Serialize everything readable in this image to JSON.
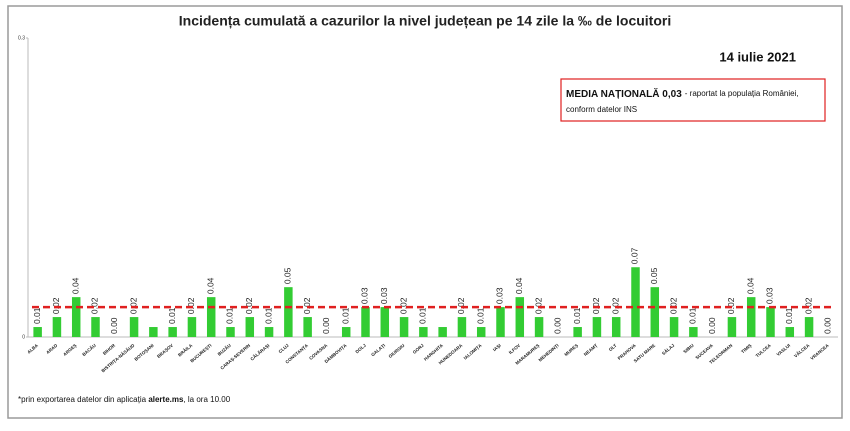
{
  "chart_data": {
    "type": "bar",
    "title": "Incidența cumulată a cazurilor la nivel județean pe 14 zile   la ‰ de locuitori",
    "subtitle": "14 iulie 2021",
    "categories": [
      "ALBA",
      "ARAD",
      "ARGEȘ",
      "BACĂU",
      "BIHOR",
      "BISTRIȚA-NĂSĂUD",
      "BOTOȘANI",
      "BRAȘOV",
      "BRĂILA",
      "BUCUREȘTI",
      "BUZĂU",
      "CARAȘ-SEVERIN",
      "CĂLĂRAȘI",
      "CLUJ",
      "CONSTANȚA",
      "COVASNA",
      "DÂMBOVIȚA",
      "DOLJ",
      "GALAȚI",
      "GIURGIU",
      "GORJ",
      "HARGHITA",
      "HUNEDOARA",
      "IALOMIȚA",
      "IAȘI",
      "ILFOV",
      "MARAMUREȘ",
      "MEHEDINȚI",
      "MUREȘ",
      "NEAMȚ",
      "OLT",
      "PRAHOVA",
      "SATU MARE",
      "SĂLAJ",
      "SIBIU",
      "SUCEAVA",
      "TELEORMAN",
      "TIMIȘ",
      "TULCEA",
      "VASLUI",
      "VÂLCEA",
      "VRANCEA"
    ],
    "values": [
      0.01,
      0.02,
      0.04,
      0.02,
      0,
      0.02,
      0.01,
      0.01,
      0.02,
      0.04,
      0.01,
      0.02,
      0.01,
      0.05,
      0.02,
      0,
      0.01,
      0.03,
      0.03,
      0.02,
      0.01,
      0.01,
      0.02,
      0.01,
      0.03,
      0.04,
      0.02,
      0,
      0.01,
      0.02,
      0.02,
      0.07,
      0.05,
      0.02,
      0.01,
      0,
      0.02,
      0.04,
      0.03,
      0.01,
      0.02,
      0
    ],
    "value_labels": [
      "0.01",
      "0.02",
      "0.04",
      "0.02",
      "0.00",
      "0.02",
      null,
      "0.01",
      "0.02",
      "0.04",
      "0.01",
      "0.02",
      "0.01",
      "0.05",
      "0.02",
      "0.00",
      "0.01",
      "0.03",
      "0.03",
      "0.02",
      "0.01",
      null,
      "0.02",
      "0.01",
      "0.03",
      "0.04",
      "0.02",
      "0.00",
      "0.01",
      "0.02",
      "0.02",
      "0.07",
      "0.05",
      "0.02",
      "0.01",
      "0.00",
      "0.02",
      "0.04",
      "0.03",
      "0.01",
      "0.02",
      "0.00"
    ],
    "color": "#33cc33",
    "ylim": [
      0,
      0.3
    ],
    "yticks": [
      0,
      0.3
    ],
    "reference_line": {
      "value": 0.03,
      "color": "#e02020",
      "label": "MEDIA NAȚIONALĂ 0,03",
      "note": [
        "- raportat la populația României,",
        "conform datelor INS"
      ]
    },
    "footnote": [
      "*prin exportarea datelor din aplicația ",
      "alerte.ms",
      ", la ora 10.00"
    ]
  }
}
